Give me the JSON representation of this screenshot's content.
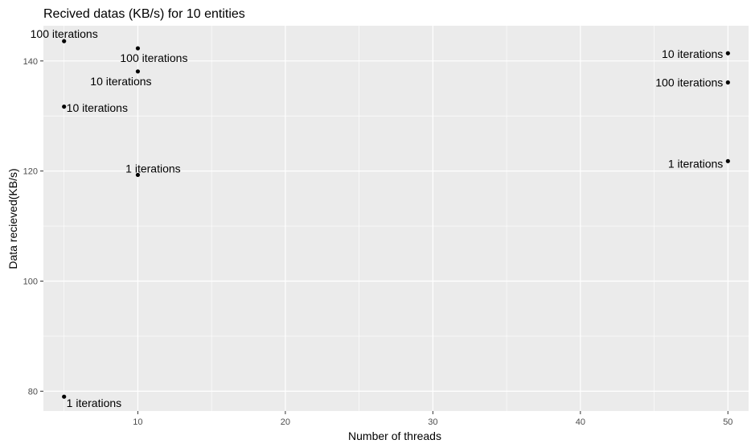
{
  "chart_data": {
    "type": "scatter",
    "title": "Recived datas (KB/s) for 10 entities",
    "xlabel": "Number of threads",
    "ylabel": "Data recieved(KB/s)",
    "xlim": [
      3.6,
      51.4
    ],
    "ylim": [
      76.4,
      146.4
    ],
    "xticks": [
      10,
      20,
      30,
      40,
      50
    ],
    "yticks": [
      80,
      100,
      120,
      140
    ],
    "grid": true,
    "legend": "none",
    "colors": {
      "panel": "#ebebeb",
      "grid": "#ffffff",
      "point": "#000000",
      "tick_text": "#4d4d4d"
    },
    "points": [
      {
        "x": 5,
        "y": 143.6,
        "label": "100 iterations",
        "align": "middle",
        "dx": 0,
        "dy": -9
      },
      {
        "x": 5,
        "y": 131.7,
        "label": "10 iterations",
        "align": "start",
        "dx": 3,
        "dy": 1.5
      },
      {
        "x": 5,
        "y": 79.0,
        "label": "1 iterations",
        "align": "start",
        "dx": 3,
        "dy": 8
      },
      {
        "x": 10,
        "y": 142.3,
        "label": "100 iterations",
        "align": "middle",
        "dx": 20,
        "dy": 12
      },
      {
        "x": 10,
        "y": 138.1,
        "label": "10 iterations",
        "align": "middle",
        "dx": -21,
        "dy": 12
      },
      {
        "x": 10,
        "y": 119.3,
        "label": "1 iterations",
        "align": "middle",
        "dx": 19,
        "dy": -8
      },
      {
        "x": 50,
        "y": 141.4,
        "label": "10 iterations",
        "align": "end",
        "dx": -6,
        "dy": 1
      },
      {
        "x": 50,
        "y": 136.1,
        "label": "100 iterations",
        "align": "end",
        "dx": -6,
        "dy": 0
      },
      {
        "x": 50,
        "y": 121.8,
        "label": "1 iterations",
        "align": "end",
        "dx": -6,
        "dy": 3
      }
    ]
  }
}
